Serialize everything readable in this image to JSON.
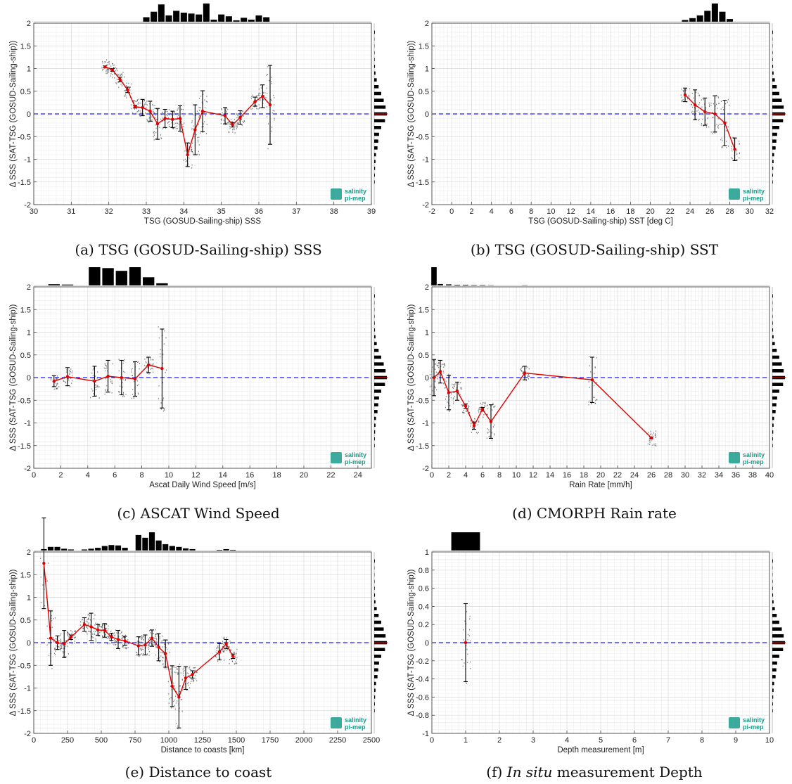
{
  "logo": {
    "line1": "salinity",
    "line2": "pi-mep",
    "color": "#1a9c8c"
  },
  "colors": {
    "mean": "#e00000",
    "zero_line": "#1a1aff",
    "err": "#000000",
    "hist": "#000000",
    "scatter": "#444444"
  },
  "chart_data": [
    {
      "type": "scatter",
      "caption_prefix": "(a)",
      "caption": "TSG (GOSUD-Sailing-ship) SSS",
      "xlabel": "TSG (GOSUD-Sailing-ship) SSS",
      "ylabel": "Δ SSS (SAT-TSG (GOSUD-Sailing-ship))",
      "xlim": [
        30,
        39
      ],
      "ylim": [
        -2,
        2
      ],
      "xticks": [
        30,
        31,
        32,
        33,
        34,
        35,
        36,
        37,
        38,
        39
      ],
      "xtick_labels": [
        "30",
        "31",
        "32",
        "33",
        "34",
        "35",
        "36",
        "37",
        "38",
        "39"
      ],
      "yticks": [
        -2,
        -1.5,
        -1,
        -0.5,
        0,
        0.5,
        1,
        1.5,
        2
      ],
      "ytick_labels": [
        "-2",
        "-1.5",
        "-1",
        "-0.5",
        "0",
        "0.5",
        "1",
        "1.5",
        "2"
      ],
      "mean": {
        "x": [
          31.9,
          32.1,
          32.3,
          32.5,
          32.7,
          32.9,
          33.1,
          33.3,
          33.5,
          33.7,
          33.9,
          34.1,
          34.3,
          34.5,
          35.1,
          35.3,
          35.5,
          35.9,
          36.1,
          36.3
        ],
        "y": [
          1.04,
          0.97,
          0.76,
          0.53,
          0.16,
          0.14,
          0.06,
          -0.22,
          -0.1,
          -0.12,
          -0.1,
          -0.9,
          -0.35,
          0.06,
          -0.04,
          -0.24,
          -0.08,
          0.27,
          0.39,
          0.2
        ],
        "err": [
          0.02,
          0.03,
          0.05,
          0.06,
          0.03,
          0.18,
          0.22,
          0.34,
          0.2,
          0.18,
          0.28,
          0.26,
          0.55,
          0.45,
          0.18,
          0.05,
          0.15,
          0.1,
          0.25,
          0.87
        ]
      },
      "x_hist": {
        "bins": [
          33.0,
          33.2,
          33.4,
          33.6,
          33.8,
          34.0,
          34.2,
          34.4,
          34.6,
          34.8,
          35.0,
          35.2,
          35.4,
          35.6,
          35.8,
          36.0,
          36.2
        ],
        "heights": [
          0.25,
          0.55,
          0.95,
          0.35,
          0.6,
          0.5,
          0.45,
          0.4,
          1.0,
          0.12,
          0.4,
          0.3,
          0.08,
          0.22,
          0.12,
          0.35,
          0.25
        ]
      },
      "hist_offset": 0
    },
    {
      "type": "scatter",
      "caption_prefix": "(b)",
      "caption": "TSG (GOSUD-Sailing-ship) SST",
      "xlabel": "TSG (GOSUD-Sailing-ship) SST [deg C]",
      "ylabel": "Δ SSS (SAT-TSG (GOSUD-Sailing-ship))",
      "xlim": [
        -2,
        32
      ],
      "ylim": [
        -2,
        2
      ],
      "xticks": [
        -2,
        0,
        2,
        4,
        6,
        8,
        10,
        12,
        14,
        16,
        18,
        20,
        22,
        24,
        26,
        28,
        30,
        32
      ],
      "xtick_labels": [
        "-2",
        "0",
        "2",
        "4",
        "6",
        "8",
        "10",
        "12",
        "14",
        "16",
        "18",
        "20",
        "22",
        "24",
        "26",
        "28",
        "30",
        "32"
      ],
      "yticks": [
        -2,
        -1.5,
        -1,
        -0.5,
        0,
        0.5,
        1,
        1.5,
        2
      ],
      "ytick_labels": [
        "-2",
        "-1.5",
        "-1",
        "-0.5",
        "0",
        "0.5",
        "1",
        "1.5",
        "2"
      ],
      "mean": {
        "x": [
          23.5,
          24.5,
          25.5,
          26.5,
          27.5,
          28.5
        ],
        "y": [
          0.42,
          0.2,
          0.05,
          0.0,
          -0.2,
          -0.78
        ],
        "err": [
          0.15,
          0.33,
          0.3,
          0.4,
          0.5,
          0.25
        ]
      },
      "x_hist": {
        "bins": [
          23.5,
          24.25,
          25.0,
          25.75,
          26.5,
          27.25,
          28.0
        ],
        "heights": [
          0.1,
          0.2,
          0.35,
          0.6,
          1.0,
          0.55,
          0.15
        ]
      },
      "hist_offset": 0
    },
    {
      "type": "scatter",
      "caption_prefix": "(c)",
      "caption": "ASCAT Wind Speed",
      "xlabel": "Ascat Daily Wind Speed [m/s]",
      "ylabel": "Δ SSS (SAT-TSG (GOSUD-Sailing-ship))",
      "xlim": [
        0,
        25
      ],
      "ylim": [
        -2,
        2
      ],
      "xticks": [
        0,
        2,
        4,
        6,
        8,
        10,
        12,
        14,
        16,
        18,
        20,
        22,
        24
      ],
      "xtick_labels": [
        "0",
        "2",
        "4",
        "6",
        "8",
        "10",
        "12",
        "14",
        "16",
        "18",
        "20",
        "22",
        "24"
      ],
      "yticks": [
        -2,
        -1.5,
        -1,
        -0.5,
        0,
        0.5,
        1,
        1.5,
        2
      ],
      "ytick_labels": [
        "-2",
        "-1.5",
        "-1",
        "-0.5",
        "0",
        "0.5",
        "1",
        "1.5",
        "2"
      ],
      "mean": {
        "x": [
          1.5,
          2.5,
          4.5,
          5.5,
          6.5,
          7.5,
          8.5,
          9.5
        ],
        "y": [
          -0.08,
          0.02,
          -0.08,
          0.03,
          0.0,
          -0.03,
          0.28,
          0.2
        ],
        "err": [
          0.12,
          0.2,
          0.33,
          0.35,
          0.38,
          0.38,
          0.17,
          0.87
        ]
      },
      "x_hist": {
        "bins": [
          1.5,
          2.5,
          4.5,
          5.5,
          6.5,
          7.5,
          8.5,
          9.5
        ],
        "heights": [
          0.07,
          0.05,
          1.0,
          0.95,
          0.8,
          1.0,
          0.45,
          0.12
        ]
      },
      "hist_offset": 0
    },
    {
      "type": "scatter",
      "caption_prefix": "(d)",
      "caption": "CMORPH Rain rate",
      "xlabel": "Rain Rate [mm/h]",
      "ylabel": "Δ SSS (SAT-TSG (GOSUD-Sailing-ship))",
      "xlim": [
        0,
        40
      ],
      "ylim": [
        -2,
        2
      ],
      "xticks": [
        0,
        2,
        4,
        6,
        8,
        10,
        12,
        14,
        16,
        18,
        20,
        22,
        24,
        26,
        28,
        30,
        32,
        34,
        36,
        38,
        40
      ],
      "xtick_labels": [
        "0",
        "2",
        "4",
        "6",
        "8",
        "10",
        "12",
        "14",
        "16",
        "18",
        "20",
        "22",
        "24",
        "26",
        "28",
        "30",
        "32",
        "34",
        "36",
        "38",
        "40"
      ],
      "yticks": [
        -2,
        -1.5,
        -1,
        -0.5,
        0,
        0.5,
        1,
        1.5,
        2
      ],
      "ytick_labels": [
        "-2",
        "-1.5",
        "-1",
        "-0.5",
        "0",
        "0.5",
        "1",
        "1.5",
        "2"
      ],
      "mean": {
        "x": [
          0.25,
          1.0,
          2.0,
          3.0,
          4.0,
          5.0,
          6.0,
          7.0,
          11.0,
          19.0,
          26.0
        ],
        "y": [
          0.0,
          0.13,
          -0.33,
          -0.3,
          -0.63,
          -1.06,
          -0.7,
          -0.97,
          0.1,
          -0.05,
          -1.33
        ],
        "err": [
          0.4,
          0.25,
          0.38,
          0.2,
          0.05,
          0.08,
          0.04,
          0.37,
          0.15,
          0.5,
          0.02
        ]
      },
      "x_hist": {
        "bins": [
          0.25,
          1.0,
          2.0,
          3.0,
          4.0,
          5.0,
          6.0,
          7.0,
          11.0
        ],
        "heights": [
          1.0,
          0.08,
          0.06,
          0.04,
          0.04,
          0.03,
          0.03,
          0.02,
          0.02
        ]
      },
      "hist_offset": 0
    },
    {
      "type": "scatter",
      "caption_prefix": "(e)",
      "caption": "Distance to coast",
      "xlabel": "Distance to coasts [km]",
      "ylabel": "Δ SSS (SAT-TSG (GOSUD-Sailing-ship))",
      "xlim": [
        0,
        2500
      ],
      "ylim": [
        -2,
        2
      ],
      "xticks": [
        0,
        250,
        500,
        750,
        1000,
        1250,
        1500,
        1750,
        2000,
        2250,
        2500
      ],
      "xtick_labels": [
        "0",
        "250",
        "500",
        "750",
        "1000",
        "1250",
        "1500",
        "1750",
        "2000",
        "2250",
        "2500"
      ],
      "yticks": [
        -2,
        -1.5,
        -1,
        -0.5,
        0,
        0.5,
        1,
        1.5,
        2
      ],
      "ytick_labels": [
        "-2",
        "-1.5",
        "-1",
        "-0.5",
        "0",
        "0.5",
        "1",
        "1.5",
        "2"
      ],
      "mean": {
        "x": [
          75,
          125,
          175,
          225,
          275,
          375,
          425,
          475,
          525,
          575,
          625,
          675,
          775,
          825,
          875,
          925,
          975,
          1025,
          1075,
          1125,
          1175,
          1375,
          1425,
          1475
        ],
        "y": [
          1.75,
          0.1,
          0.0,
          -0.03,
          0.12,
          0.4,
          0.35,
          0.28,
          0.27,
          0.13,
          0.07,
          0.04,
          -0.07,
          -0.05,
          0.1,
          -0.1,
          -0.24,
          -0.96,
          -1.2,
          -0.78,
          -0.7,
          -0.2,
          -0.03,
          -0.3
        ],
        "err": [
          1.0,
          0.6,
          0.15,
          0.3,
          0.05,
          0.15,
          0.3,
          0.12,
          0.15,
          0.08,
          0.2,
          0.1,
          0.2,
          0.22,
          0.18,
          0.3,
          0.3,
          0.45,
          0.68,
          0.25,
          0.08,
          0.18,
          0.1,
          0.05
        ]
      },
      "x_hist": {
        "bins": [
          75,
          125,
          175,
          225,
          275,
          375,
          425,
          475,
          525,
          575,
          625,
          675,
          775,
          825,
          875,
          925,
          975,
          1025,
          1075,
          1125,
          1175,
          1375,
          1425,
          1475
        ],
        "heights": [
          0.08,
          0.2,
          0.2,
          0.1,
          0.06,
          0.06,
          0.1,
          0.15,
          0.25,
          0.3,
          0.28,
          0.15,
          0.85,
          0.7,
          1.0,
          0.55,
          0.35,
          0.25,
          0.2,
          0.12,
          0.08,
          0.04,
          0.08,
          0.04
        ]
      },
      "hist_offset": 0
    },
    {
      "type": "scatter",
      "caption_prefix": "(f)",
      "caption_italic": "In situ",
      "caption": " measurement Depth",
      "xlabel": "Depth measurement [m]",
      "ylabel": "Δ SSS (SAT-TSG (GOSUD-Sailing-ship))",
      "xlim": [
        0,
        10
      ],
      "ylim": [
        -1,
        1
      ],
      "xticks": [
        0,
        1,
        2,
        3,
        4,
        5,
        6,
        7,
        8,
        9,
        10
      ],
      "xtick_labels": [
        "0",
        "1",
        "2",
        "3",
        "4",
        "5",
        "6",
        "7",
        "8",
        "9",
        "10"
      ],
      "yticks": [
        -1,
        -0.8,
        -0.6,
        -0.4,
        -0.2,
        0,
        0.2,
        0.4,
        0.6,
        0.8,
        1
      ],
      "ytick_labels": [
        "-1",
        "-0.8",
        "-0.6",
        "-0.4",
        "-0.2",
        "0",
        "0.2",
        "0.4",
        "0.6",
        "0.8",
        "1"
      ],
      "mean": {
        "x": [
          1.0
        ],
        "y": [
          0.0
        ],
        "err": [
          0.43
        ]
      },
      "x_hist": {
        "bins": [
          1.0
        ],
        "heights": [
          1.0
        ]
      },
      "hist_offset": 0
    }
  ],
  "y_hist": {
    "y": [
      -1.5,
      -1.35,
      -1.2,
      -1.05,
      -0.9,
      -0.75,
      -0.6,
      -0.45,
      -0.3,
      -0.15,
      0.0,
      0.15,
      0.3,
      0.45,
      0.6,
      0.75,
      0.9,
      1.05,
      1.2,
      1.35,
      1.5,
      1.65,
      1.8
    ],
    "heights": [
      0.04,
      0.05,
      0.07,
      0.1,
      0.14,
      0.26,
      0.32,
      0.38,
      0.55,
      0.85,
      1.0,
      0.9,
      0.75,
      0.55,
      0.35,
      0.2,
      0.1,
      0.06,
      0.04,
      0.03,
      0.02,
      0.02,
      0.05
    ]
  }
}
